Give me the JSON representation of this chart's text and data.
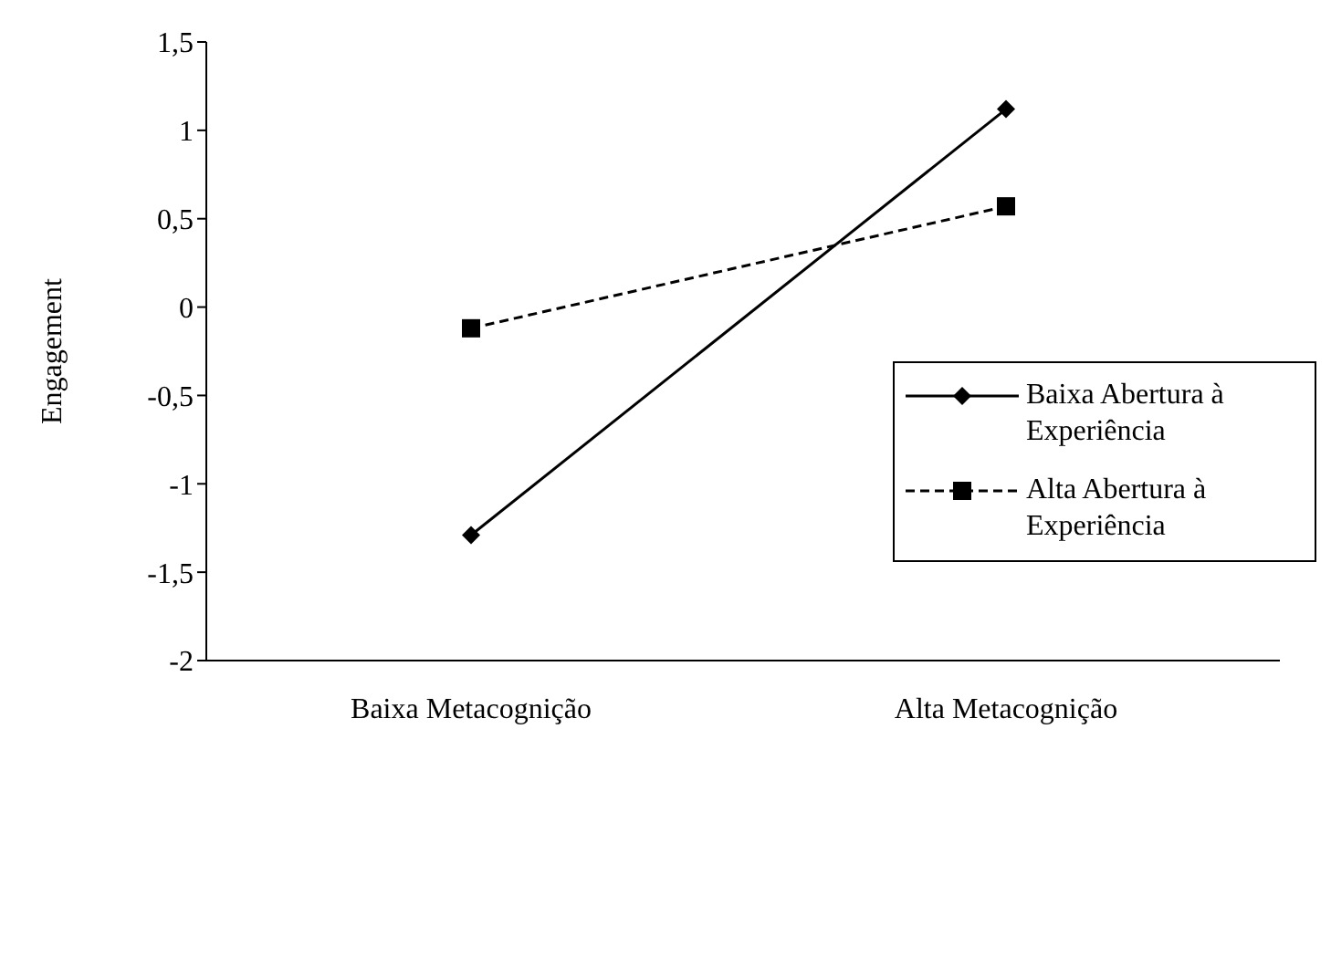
{
  "chart_data": {
    "type": "line",
    "ylabel": "Engagement",
    "categories": [
      "Baixa Metacognição",
      "Alta Metacognição"
    ],
    "series": [
      {
        "name": "Baixa Abertura à Experiência",
        "color": "#000000",
        "values": [
          -1.29,
          1.12
        ],
        "marker": "diamond",
        "line_style": "solid"
      },
      {
        "name": "Alta Abertura à Experiência",
        "color": "#000000",
        "values": [
          -0.12,
          0.57
        ],
        "marker": "square",
        "line_style": "dashed"
      }
    ],
    "ylim": [
      -2,
      1.5
    ],
    "yticks": [
      {
        "value": -2,
        "label": "-2"
      },
      {
        "value": -1.5,
        "label": "-1,5"
      },
      {
        "value": -1,
        "label": "-1"
      },
      {
        "value": -0.5,
        "label": "-0,5"
      },
      {
        "value": 0,
        "label": "0"
      },
      {
        "value": 0.5,
        "label": "0,5"
      },
      {
        "value": 1,
        "label": "1"
      },
      {
        "value": 1.5,
        "label": "1,5"
      }
    ],
    "grid": false,
    "legend": "right"
  }
}
